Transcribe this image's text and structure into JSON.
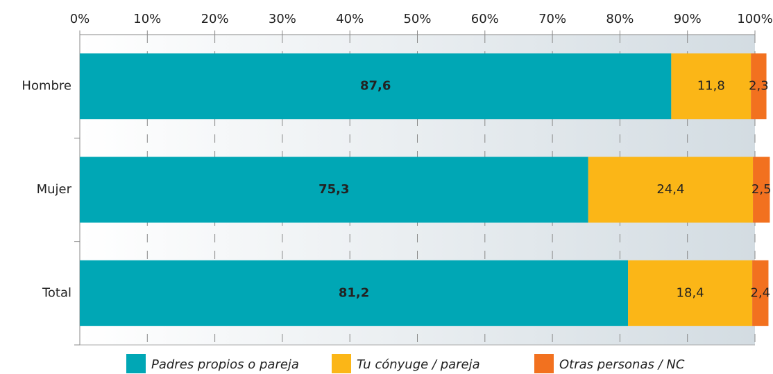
{
  "chart_data": {
    "type": "stacked-bar-horizontal",
    "categories": [
      "Hombre",
      "Mujer",
      "Total"
    ],
    "series": [
      {
        "name": "Padres propios o pareja",
        "color": "#00a7b5",
        "values": [
          87.6,
          75.3,
          81.2
        ],
        "value_labels": [
          "87,6",
          "75,3",
          "81,2"
        ]
      },
      {
        "name": "Tu cónyuge / pareja",
        "color": "#fbb617",
        "values": [
          11.8,
          24.4,
          18.4
        ],
        "value_labels": [
          "11,8",
          "24,4",
          "18,4"
        ]
      },
      {
        "name": "Otras personas / NC",
        "color": "#f2711f",
        "values": [
          2.3,
          2.5,
          2.4
        ],
        "value_labels": [
          "2,3",
          "2,5",
          "2,4"
        ]
      }
    ],
    "xlim": [
      0,
      100
    ],
    "xticks": [
      {
        "value": 0,
        "label": "0%"
      },
      {
        "value": 10,
        "label": "10%"
      },
      {
        "value": 20,
        "label": "20%"
      },
      {
        "value": 30,
        "label": "30%"
      },
      {
        "value": 40,
        "label": "40%"
      },
      {
        "value": 50,
        "label": "50%"
      },
      {
        "value": 60,
        "label": "60%"
      },
      {
        "value": 70,
        "label": "70%"
      },
      {
        "value": 80,
        "label": "80%"
      },
      {
        "value": 90,
        "label": "90%"
      },
      {
        "value": 100,
        "label": "100%"
      }
    ],
    "grid": true,
    "legend": "bottom"
  }
}
